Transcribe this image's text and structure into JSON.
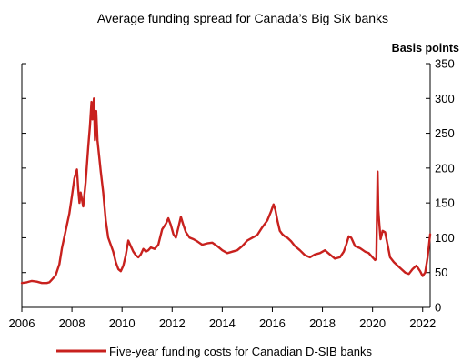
{
  "chart_data": {
    "type": "line",
    "title": "Average funding spread for Canada’s Big Six banks",
    "ylabel": "Basis points",
    "xlabel": "",
    "xlim": [
      2006.0,
      2022.3
    ],
    "ylim": [
      0,
      350
    ],
    "x_ticks": [
      2006,
      2008,
      2010,
      2012,
      2014,
      2016,
      2018,
      2020,
      2022
    ],
    "x_tick_labels": [
      "2006",
      "2008",
      "2010",
      "2012",
      "2014",
      "2016",
      "2018",
      "2020",
      "2022"
    ],
    "y_ticks": [
      0,
      50,
      100,
      150,
      200,
      250,
      300,
      350
    ],
    "y_tick_labels": [
      "0",
      "50",
      "100",
      "150",
      "200",
      "250",
      "300",
      "350"
    ],
    "y_axis_side": "right",
    "grid": false,
    "legend_position": "bottom-center",
    "series": [
      {
        "name": "Five-year funding costs for Canadian D-SIB banks",
        "color": "#c8211e",
        "x": [
          2006.0,
          2006.2,
          2006.4,
          2006.6,
          2006.8,
          2007.0,
          2007.1,
          2007.2,
          2007.35,
          2007.5,
          2007.6,
          2007.75,
          2007.9,
          2008.0,
          2008.1,
          2008.2,
          2008.25,
          2008.3,
          2008.35,
          2008.45,
          2008.55,
          2008.65,
          2008.72,
          2008.78,
          2008.82,
          2008.88,
          2008.92,
          2008.97,
          2009.02,
          2009.08,
          2009.15,
          2009.25,
          2009.35,
          2009.45,
          2009.55,
          2009.65,
          2009.75,
          2009.85,
          2009.95,
          2010.05,
          2010.15,
          2010.25,
          2010.35,
          2010.45,
          2010.55,
          2010.65,
          2010.75,
          2010.85,
          2010.95,
          2011.05,
          2011.15,
          2011.3,
          2011.45,
          2011.6,
          2011.75,
          2011.85,
          2011.95,
          2012.05,
          2012.15,
          2012.25,
          2012.35,
          2012.45,
          2012.55,
          2012.7,
          2012.85,
          2013.0,
          2013.2,
          2013.4,
          2013.6,
          2013.8,
          2014.0,
          2014.2,
          2014.4,
          2014.6,
          2014.8,
          2015.0,
          2015.2,
          2015.4,
          2015.6,
          2015.8,
          2015.95,
          2016.05,
          2016.12,
          2016.2,
          2016.3,
          2016.4,
          2016.5,
          2016.6,
          2016.75,
          2016.9,
          2017.1,
          2017.3,
          2017.5,
          2017.7,
          2017.9,
          2018.1,
          2018.3,
          2018.5,
          2018.7,
          2018.85,
          2018.95,
          2019.05,
          2019.15,
          2019.3,
          2019.5,
          2019.7,
          2019.85,
          2020.0,
          2020.1,
          2020.15,
          2020.2,
          2020.23,
          2020.27,
          2020.32,
          2020.4,
          2020.5,
          2020.6,
          2020.7,
          2020.85,
          2021.0,
          2021.15,
          2021.3,
          2021.45,
          2021.6,
          2021.75,
          2021.9,
          2022.0,
          2022.1,
          2022.2,
          2022.3
        ],
        "y": [
          35,
          36,
          38,
          37,
          35,
          35,
          36,
          40,
          46,
          62,
          85,
          110,
          135,
          160,
          185,
          198,
          170,
          150,
          165,
          145,
          180,
          230,
          260,
          295,
          270,
          300,
          240,
          282,
          240,
          220,
          195,
          165,
          125,
          100,
          90,
          80,
          65,
          55,
          52,
          60,
          75,
          96,
          88,
          80,
          75,
          72,
          76,
          84,
          80,
          82,
          86,
          84,
          90,
          112,
          120,
          128,
          118,
          105,
          100,
          115,
          130,
          118,
          108,
          100,
          98,
          95,
          90,
          92,
          93,
          88,
          82,
          78,
          80,
          82,
          88,
          96,
          100,
          104,
          115,
          125,
          138,
          148,
          140,
          125,
          110,
          105,
          102,
          100,
          95,
          88,
          82,
          75,
          72,
          76,
          78,
          82,
          76,
          70,
          72,
          80,
          90,
          102,
          100,
          88,
          85,
          80,
          78,
          72,
          68,
          70,
          195,
          140,
          120,
          98,
          110,
          108,
          90,
          72,
          65,
          60,
          55,
          50,
          48,
          55,
          60,
          52,
          45,
          50,
          72,
          105
        ]
      }
    ]
  }
}
